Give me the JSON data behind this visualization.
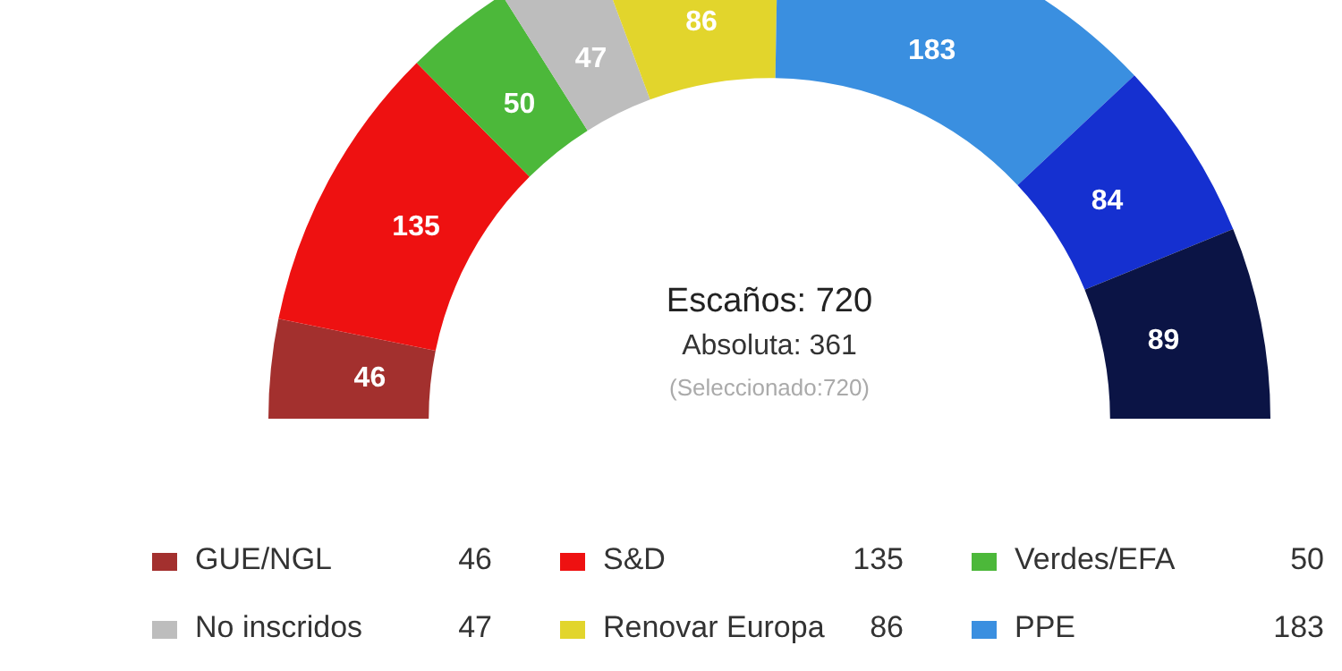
{
  "chart_data": {
    "type": "donut",
    "categories": [
      "GUE/NGL",
      "S&D",
      "Verdes/EFA",
      "No inscridos",
      "Renovar Europa",
      "PPE",
      null,
      null
    ],
    "values": [
      46,
      135,
      50,
      47,
      86,
      183,
      84,
      89
    ],
    "colors": [
      "#a3302e",
      "#ee1111",
      "#4cb83a",
      "#bdbdbd",
      "#e2d52c",
      "#3a8fe0",
      "#1530d0",
      "#0b1445"
    ],
    "data_labels": true,
    "legend": "bottom",
    "annotations": [
      "Escaños: 720",
      "Absoluta: 361",
      "(Seleccionado:720)",
      {
        "text": "46",
        "x": "GUE/NGL"
      },
      {
        "text": "135",
        "x": "S&D"
      },
      {
        "text": "50",
        "x": "Verdes/EFA"
      },
      {
        "text": "47",
        "x": "No inscridos"
      },
      {
        "text": "86",
        "x": "Renovar Europa"
      },
      {
        "text": "183",
        "x": "PPE"
      }
    ]
  }
}
